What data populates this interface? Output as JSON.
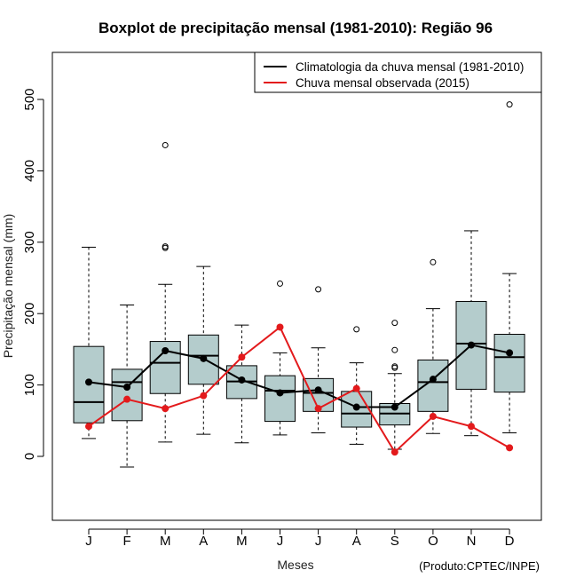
{
  "chart_data": {
    "type": "boxplot",
    "title": "Boxplot de precipitação mensal (1981-2010): Região 96",
    "xlabel": "Meses",
    "ylabel": "Precipitação mensal (mm)",
    "ylim": [
      -90,
      560
    ],
    "yticks": [
      0,
      100,
      200,
      300,
      400,
      500
    ],
    "categories": [
      "J",
      "F",
      "M",
      "A",
      "M",
      "J",
      "J",
      "A",
      "S",
      "O",
      "N",
      "D"
    ],
    "boxes": [
      {
        "lower": 25,
        "q1": 47,
        "median": 76,
        "q3": 154,
        "upper": 293,
        "outliers": []
      },
      {
        "lower": -15,
        "q1": 50,
        "median": 104,
        "q3": 122,
        "upper": 212,
        "outliers": []
      },
      {
        "lower": 20,
        "q1": 88,
        "median": 131,
        "q3": 161,
        "upper": 241,
        "outliers": [
          292,
          294,
          436
        ]
      },
      {
        "lower": 31,
        "q1": 101,
        "median": 141,
        "q3": 170,
        "upper": 266,
        "outliers": []
      },
      {
        "lower": 19,
        "q1": 81,
        "median": 105,
        "q3": 127,
        "upper": 184,
        "outliers": []
      },
      {
        "lower": 30,
        "q1": 49,
        "median": 92,
        "q3": 113,
        "upper": 145,
        "outliers": [
          242
        ]
      },
      {
        "lower": 33,
        "q1": 63,
        "median": 89,
        "q3": 109,
        "upper": 152,
        "outliers": [
          234
        ]
      },
      {
        "lower": 17,
        "q1": 41,
        "median": 60,
        "q3": 91,
        "upper": 131,
        "outliers": [
          178
        ]
      },
      {
        "lower": 10,
        "q1": 44,
        "median": 60,
        "q3": 74,
        "upper": 116,
        "outliers": [
          124,
          126,
          149,
          187
        ]
      },
      {
        "lower": 32,
        "q1": 63,
        "median": 104,
        "q3": 135,
        "upper": 207,
        "outliers": [
          272
        ]
      },
      {
        "lower": 29,
        "q1": 94,
        "median": 158,
        "q3": 217,
        "upper": 316,
        "outliers": []
      },
      {
        "lower": 33,
        "q1": 90,
        "median": 139,
        "q3": 171,
        "upper": 256,
        "outliers": [
          493
        ]
      }
    ],
    "series": [
      {
        "name": "Climatologia da chuva mensal (1981-2010)",
        "color": "#000000",
        "values": [
          104,
          97,
          148,
          137,
          107,
          89,
          93,
          69,
          69,
          108,
          156,
          145
        ]
      },
      {
        "name": "Chuva mensal observada (2015)",
        "color": "#e31a1c",
        "values": [
          42,
          80,
          67,
          85,
          139,
          181,
          67,
          95,
          6,
          56,
          42,
          12
        ]
      }
    ],
    "box_fill": "#b4cccc",
    "legend_position": "top-right",
    "credit": "(Produto:CPTEC/INPE)"
  }
}
